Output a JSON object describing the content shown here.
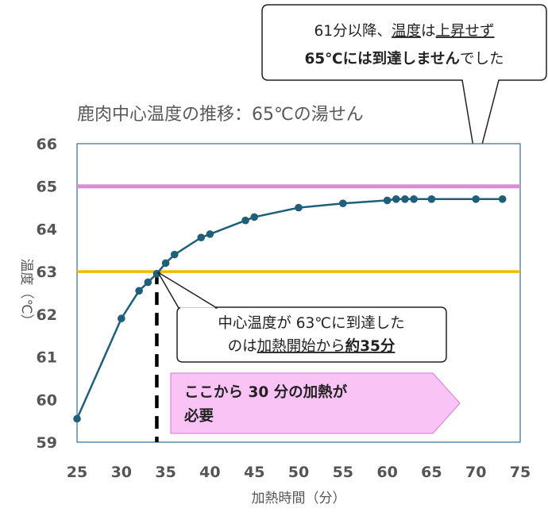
{
  "chart_data": {
    "type": "line",
    "title": "鹿肉中心温度の推移：65℃の湯せん",
    "xlabel": "加熱時間（分）",
    "ylabel": "温度（℃）",
    "xlim": [
      25,
      75
    ],
    "ylim": [
      59,
      66
    ],
    "xticks": [
      "25",
      "30",
      "35",
      "40",
      "45",
      "50",
      "55",
      "60",
      "65",
      "70",
      "75"
    ],
    "yticks": [
      "59",
      "60",
      "61",
      "62",
      "63",
      "64",
      "65",
      "66"
    ],
    "series": [
      {
        "x": [
          25,
          30,
          32,
          33,
          34,
          35,
          36,
          39,
          40,
          44,
          45,
          50,
          55,
          60,
          61,
          62,
          63,
          65,
          70,
          73
        ],
        "y": [
          59.55,
          61.9,
          62.55,
          62.75,
          62.95,
          63.2,
          63.4,
          63.8,
          63.88,
          64.2,
          64.28,
          64.5,
          64.6,
          64.67,
          64.7,
          64.7,
          64.7,
          64.7,
          64.7,
          64.7
        ]
      }
    ],
    "reference_lines": [
      {
        "y": 65,
        "color": "#d98fd6"
      },
      {
        "y": 63,
        "color": "#f5b800"
      }
    ],
    "vertical_marker": {
      "x": 34
    },
    "annotations": {
      "top_callout": {
        "line1": [
          {
            "text": "61分以降、",
            "bold": false,
            "underline": false
          },
          {
            "text": "温度",
            "bold": false,
            "underline": true
          },
          {
            "text": "は",
            "bold": false,
            "underline": false
          },
          {
            "text": "上昇せず",
            "bold": false,
            "underline": true
          }
        ],
        "line2": [
          {
            "text": "65℃には到達しません",
            "bold": true,
            "underline": false
          },
          {
            "text": "でした",
            "bold": false,
            "underline": false
          }
        ],
        "points_to": {
          "x": 70,
          "y": 65
        }
      },
      "mid_callout": {
        "line1": [
          {
            "text": "中心温度が 63℃に到達した",
            "bold": false,
            "underline": false
          }
        ],
        "line2": [
          {
            "text": "のは",
            "bold": false,
            "underline": false
          },
          {
            "text": "加熱開始から",
            "bold": false,
            "underline": true
          },
          {
            "text": "約35分",
            "bold": true,
            "underline": true
          }
        ],
        "points_to": {
          "x": 34,
          "y": 63
        }
      },
      "arrow_label": {
        "line1": "ここから 30 分の加熱が",
        "line2": "必要"
      }
    },
    "colors": {
      "series": "#1f5f7a",
      "plot_border": "#2e6f8e",
      "arrow_fill": "#f9c3f5",
      "arrow_stroke": "#d88ad4"
    }
  }
}
